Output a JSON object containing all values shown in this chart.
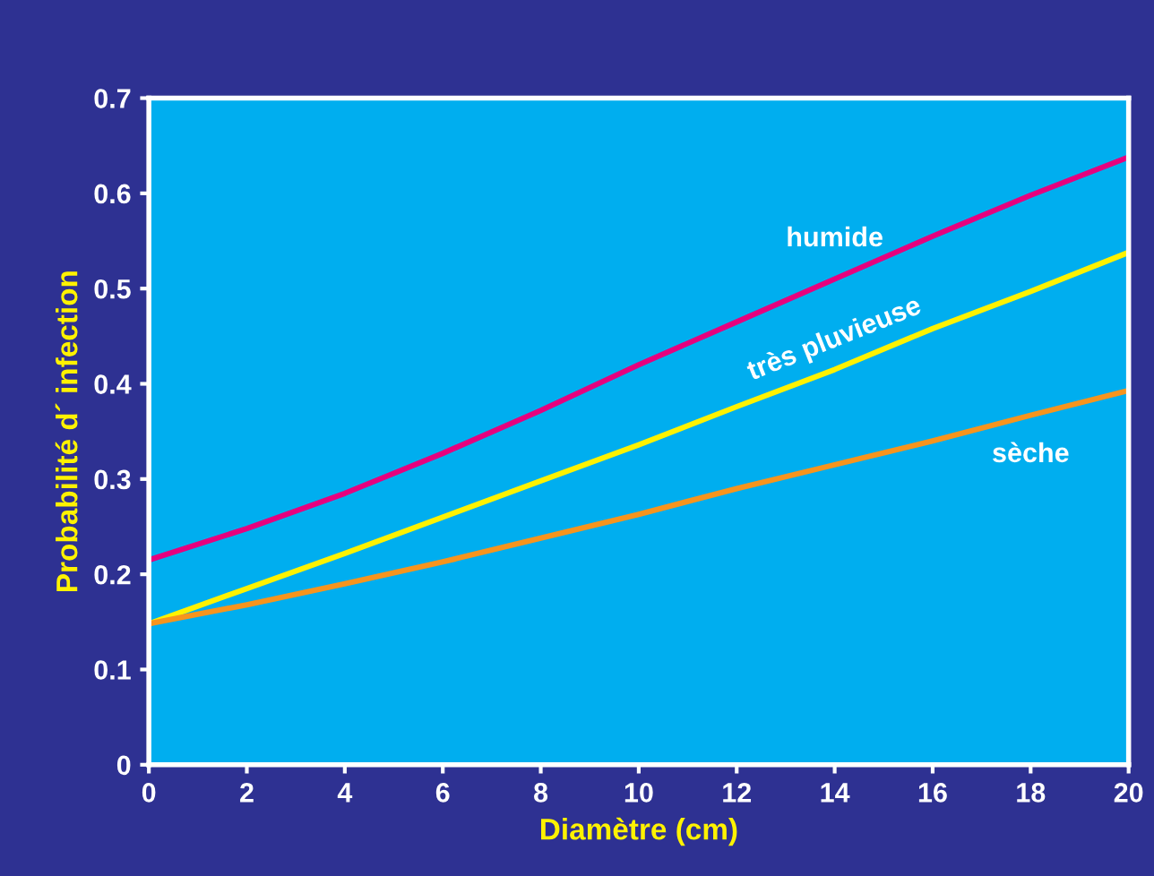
{
  "chart_data": {
    "type": "line",
    "xlabel": "Diamètre (cm)",
    "ylabel": "Probabilité d´ infection",
    "x": [
      0,
      2,
      4,
      6,
      8,
      10,
      12,
      14,
      16,
      18,
      20
    ],
    "series": [
      {
        "name": "humide",
        "color": "#e6007e",
        "values": [
          0.215,
          0.248,
          0.285,
          0.327,
          0.372,
          0.42,
          0.465,
          0.51,
          0.555,
          0.598,
          0.638
        ]
      },
      {
        "name": "très pluvieuse",
        "color": "#fff200",
        "values": [
          0.148,
          0.185,
          0.222,
          0.26,
          0.298,
          0.336,
          0.376,
          0.415,
          0.458,
          0.497,
          0.538
        ]
      },
      {
        "name": "sèche",
        "color": "#f7941d",
        "values": [
          0.148,
          0.168,
          0.19,
          0.213,
          0.238,
          0.263,
          0.29,
          0.315,
          0.34,
          0.367,
          0.393
        ]
      }
    ],
    "xlim": [
      0,
      20
    ],
    "xticks": [
      0,
      2,
      4,
      6,
      8,
      10,
      12,
      14,
      16,
      18,
      20
    ],
    "ylim": [
      0,
      0.7
    ],
    "yticks": [
      0,
      0.1,
      0.2,
      0.3,
      0.4,
      0.5,
      0.6,
      0.7
    ],
    "grid": false,
    "legend": false,
    "marker": "none",
    "line_style": "solid"
  }
}
